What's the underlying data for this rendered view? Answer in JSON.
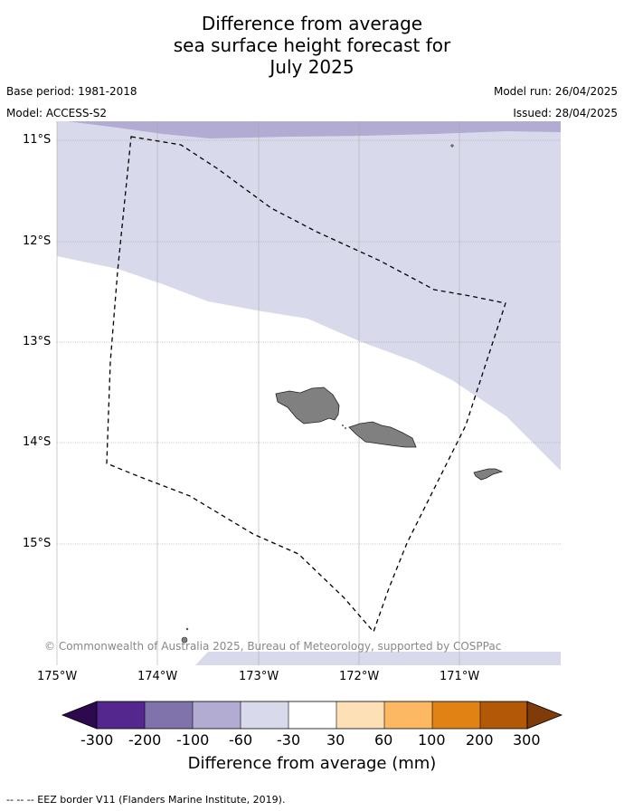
{
  "title_lines": [
    "Difference from average",
    "sea surface height forecast for",
    "July 2025"
  ],
  "base_period": "Base period: 1981-2018",
  "model": "Model: ACCESS-S2",
  "model_run": "Model run: 26/04/2025",
  "issued": "Issued: 28/04/2025",
  "copyright": "© Commonwealth of Australia 2025, Bureau of Meteorology, supported by COSPPac",
  "lat_labels": [
    "11°S",
    "12°S",
    "13°S",
    "14°S",
    "15°S"
  ],
  "lon_labels": [
    "175°W",
    "174°W",
    "173°W",
    "172°W",
    "171°W"
  ],
  "colorbar": {
    "title": "Difference from average (mm)",
    "tick_labels": [
      "-300",
      "-200",
      "-100",
      "-60",
      "-30",
      "30",
      "60",
      "100",
      "200",
      "300"
    ],
    "colors": [
      "#2d0a4e",
      "#54278f",
      "#8073ac",
      "#b2abd2",
      "#d8daeb",
      "#ffffff",
      "#fee0b6",
      "#fdb863",
      "#e08214",
      "#b35806",
      "#7f3b08"
    ]
  },
  "footer": "--  --  -- EEZ border V11 (Flanders Marine Institute, 2019)."
}
